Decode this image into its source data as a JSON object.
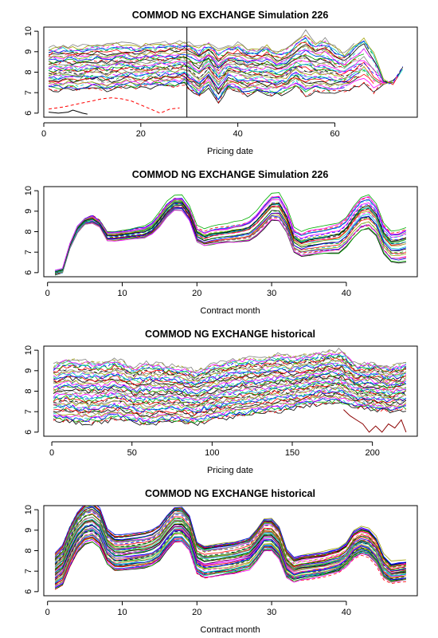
{
  "palette": [
    "#000000",
    "#ff0000",
    "#00b000",
    "#0000ff",
    "#00c8c8",
    "#ff00ff",
    "#a0a000",
    "#808080"
  ],
  "chart_data": [
    {
      "type": "line",
      "title": "COMMOD NG EXCHANGE Simulation 226",
      "xlabel": "Pricing date",
      "ylabel": "",
      "xlim": [
        0,
        77
      ],
      "ylim": [
        5.8,
        10.2
      ],
      "xticks": [
        0,
        20,
        40,
        60
      ],
      "yticks": [
        6,
        7,
        8,
        9,
        10
      ],
      "vline": 29.5,
      "pattern": "simulated-paths",
      "series_count": 40,
      "x": [
        1,
        3,
        5,
        7,
        9,
        11,
        13,
        15,
        17,
        19,
        21,
        23,
        25,
        27,
        29,
        30,
        32,
        34,
        36,
        38,
        40,
        42,
        44,
        46,
        48,
        50,
        52,
        54,
        56,
        58,
        60,
        62,
        64,
        66,
        68,
        70,
        72,
        74
      ],
      "band": [
        {
          "name": "upper envelope",
          "values": [
            9.2,
            9.25,
            9.3,
            9.25,
            9.3,
            9.35,
            9.3,
            9.4,
            9.35,
            9.3,
            9.4,
            9.35,
            9.4,
            9.45,
            9.5,
            9.4,
            9.2,
            9.5,
            9.1,
            9.3,
            9.4,
            9.2,
            9.1,
            9.3,
            9.0,
            9.1,
            9.5,
            10.0,
            9.4,
            9.6,
            9.2,
            8.9,
            9.4,
            9.7,
            9.0,
            7.6,
            7.5,
            8.3
          ]
        },
        {
          "name": "lower envelope",
          "values": [
            7.1,
            7.1,
            7.2,
            7.1,
            7.2,
            7.2,
            7.1,
            7.2,
            7.3,
            7.2,
            7.2,
            7.3,
            7.3,
            7.3,
            7.4,
            7.2,
            6.8,
            7.3,
            6.5,
            7.2,
            7.0,
            6.9,
            7.1,
            6.9,
            6.9,
            7.0,
            7.3,
            6.8,
            7.1,
            7.0,
            7.0,
            7.1,
            7.2,
            7.4,
            7.0,
            7.4,
            7.5,
            8.2
          ]
        }
      ],
      "highlight_series": [
        {
          "name": "red dashed",
          "x": [
            1,
            4,
            6,
            8,
            10,
            12,
            14,
            16,
            18,
            20,
            22,
            24,
            26,
            28
          ],
          "values": [
            6.2,
            6.3,
            6.4,
            6.5,
            6.6,
            6.7,
            6.75,
            6.7,
            6.6,
            6.4,
            6.2,
            6.0,
            6.2,
            6.25
          ]
        },
        {
          "name": "black solid",
          "x": [
            1,
            3,
            5,
            6,
            8,
            9
          ],
          "values": [
            6.05,
            6.0,
            6.05,
            6.15,
            6.0,
            5.95
          ]
        }
      ]
    },
    {
      "type": "line",
      "title": "COMMOD NG EXCHANGE Simulation 226",
      "xlabel": "Contract month",
      "ylabel": "",
      "xlim": [
        -0.5,
        49.5
      ],
      "ylim": [
        5.8,
        10.2
      ],
      "xticks": [
        0,
        10,
        20,
        30,
        40
      ],
      "yticks": [
        6,
        7,
        8,
        9,
        10
      ],
      "pattern": "forward-curves",
      "series_count": 30,
      "x": [
        1,
        2,
        3,
        4,
        5,
        6,
        7,
        8,
        9,
        10,
        11,
        12,
        13,
        14,
        15,
        16,
        17,
        18,
        19,
        20,
        21,
        22,
        23,
        24,
        25,
        26,
        27,
        28,
        29,
        30,
        31,
        32,
        33,
        34,
        35,
        36,
        37,
        38,
        39,
        40,
        41,
        42,
        43,
        44,
        45,
        46,
        47,
        48
      ],
      "mean": [
        6.0,
        6.1,
        7.3,
        8.1,
        8.5,
        8.6,
        8.4,
        7.8,
        7.8,
        7.85,
        7.9,
        7.95,
        8.0,
        8.2,
        8.6,
        9.1,
        9.4,
        9.4,
        8.9,
        7.9,
        7.7,
        7.8,
        7.85,
        7.9,
        7.95,
        8.0,
        8.1,
        8.4,
        8.8,
        9.2,
        9.2,
        8.6,
        7.6,
        7.4,
        7.5,
        7.55,
        7.6,
        7.65,
        7.7,
        8.0,
        8.5,
        8.9,
        9.0,
        8.6,
        7.7,
        7.3,
        7.3,
        7.4
      ],
      "spread": [
        0.1,
        0.1,
        0.1,
        0.15,
        0.15,
        0.2,
        0.15,
        0.2,
        0.2,
        0.2,
        0.2,
        0.25,
        0.25,
        0.25,
        0.3,
        0.3,
        0.3,
        0.3,
        0.3,
        0.35,
        0.35,
        0.4,
        0.4,
        0.4,
        0.45,
        0.45,
        0.5,
        0.55,
        0.6,
        0.6,
        0.65,
        0.6,
        0.55,
        0.55,
        0.6,
        0.6,
        0.6,
        0.65,
        0.7,
        0.7,
        0.75,
        0.8,
        0.8,
        0.75,
        0.7,
        0.7,
        0.75,
        0.8
      ]
    },
    {
      "type": "line",
      "title": "COMMOD NG EXCHANGE historical",
      "xlabel": "Pricing date",
      "ylabel": "",
      "xlim": [
        -5,
        228
      ],
      "ylim": [
        5.8,
        10.2
      ],
      "xticks": [
        0,
        50,
        100,
        150,
        200
      ],
      "yticks": [
        6,
        7,
        8,
        9,
        10
      ],
      "pattern": "historical-paths",
      "series_count": 48,
      "x": [
        1,
        10,
        20,
        30,
        40,
        50,
        60,
        70,
        80,
        90,
        100,
        110,
        120,
        130,
        140,
        150,
        160,
        170,
        180,
        190,
        200,
        210,
        221
      ],
      "band": [
        {
          "name": "upper envelope",
          "values": [
            9.3,
            9.6,
            9.5,
            9.4,
            9.6,
            9.2,
            9.4,
            9.3,
            9.2,
            9.0,
            9.3,
            9.5,
            9.6,
            9.6,
            9.8,
            9.7,
            9.8,
            9.9,
            10.0,
            9.3,
            9.4,
            9.2,
            9.4
          ]
        },
        {
          "name": "lower envelope",
          "values": [
            6.6,
            6.5,
            6.4,
            6.5,
            6.6,
            6.5,
            6.3,
            6.5,
            6.5,
            6.4,
            6.6,
            6.7,
            6.8,
            6.9,
            7.0,
            7.1,
            7.3,
            7.4,
            7.4,
            7.2,
            7.1,
            7.0,
            7.1
          ]
        }
      ],
      "highlight_series": [
        {
          "name": "dark red tail",
          "x": [
            182,
            186,
            190,
            194,
            198,
            202,
            206,
            210,
            214,
            218,
            221
          ],
          "values": [
            7.1,
            6.8,
            6.6,
            6.4,
            6.0,
            6.3,
            6.0,
            6.4,
            6.2,
            6.6,
            6.0
          ]
        }
      ]
    },
    {
      "type": "line",
      "title": "COMMOD NG EXCHANGE historical",
      "xlabel": "Contract month",
      "ylabel": "",
      "xlim": [
        -0.5,
        49.5
      ],
      "ylim": [
        5.8,
        10.2
      ],
      "xticks": [
        0,
        10,
        20,
        30,
        40
      ],
      "yticks": [
        6,
        7,
        8,
        9,
        10
      ],
      "pattern": "forward-curves",
      "series_count": 60,
      "x": [
        1,
        2,
        3,
        4,
        5,
        6,
        7,
        8,
        9,
        10,
        11,
        12,
        13,
        14,
        15,
        16,
        17,
        18,
        19,
        20,
        21,
        22,
        23,
        24,
        25,
        26,
        27,
        28,
        29,
        30,
        31,
        32,
        33,
        34,
        35,
        36,
        37,
        38,
        39,
        40,
        41,
        42,
        43,
        44,
        45,
        46,
        47,
        48
      ],
      "mean": [
        7.0,
        7.3,
        8.2,
        8.9,
        9.3,
        9.4,
        9.1,
        8.2,
        7.9,
        7.9,
        7.95,
        8.0,
        8.05,
        8.15,
        8.4,
        8.9,
        9.3,
        9.3,
        8.9,
        7.7,
        7.5,
        7.55,
        7.6,
        7.65,
        7.7,
        7.8,
        7.9,
        8.3,
        8.8,
        8.8,
        8.4,
        7.4,
        7.1,
        7.2,
        7.25,
        7.3,
        7.35,
        7.45,
        7.55,
        7.8,
        8.3,
        8.5,
        8.4,
        8.0,
        7.2,
        6.9,
        6.95,
        7.0
      ],
      "spread": [
        0.9,
        1.0,
        1.0,
        1.0,
        1.0,
        1.0,
        1.0,
        0.9,
        0.9,
        0.9,
        0.9,
        0.9,
        0.9,
        0.9,
        0.9,
        0.9,
        0.9,
        0.9,
        0.9,
        0.8,
        0.8,
        0.8,
        0.8,
        0.8,
        0.8,
        0.8,
        0.8,
        0.8,
        0.8,
        0.8,
        0.8,
        0.7,
        0.6,
        0.6,
        0.6,
        0.6,
        0.6,
        0.6,
        0.6,
        0.6,
        0.7,
        0.7,
        0.7,
        0.7,
        0.6,
        0.5,
        0.5,
        0.5
      ]
    }
  ]
}
